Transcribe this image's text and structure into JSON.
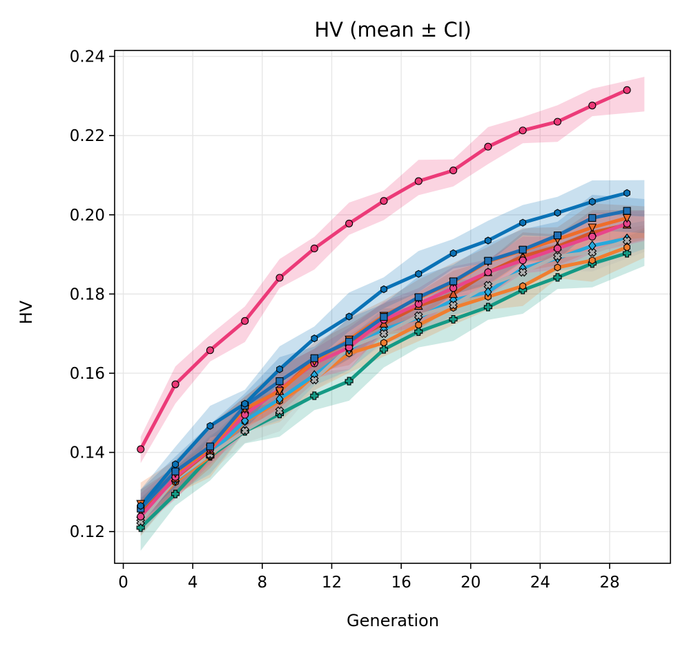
{
  "chart_data": {
    "type": "line",
    "title": "HV (mean ± CI)",
    "xlabel": "Generation",
    "ylabel": "HV",
    "xlim": [
      -0.5,
      31.5
    ],
    "ylim": [
      0.112,
      0.2415
    ],
    "xticks": [
      0,
      4,
      8,
      12,
      16,
      20,
      24,
      28
    ],
    "xtick_labels": [
      "0",
      "4",
      "8",
      "12",
      "16",
      "20",
      "24",
      "28"
    ],
    "yticks": [
      0.12,
      0.14,
      0.16,
      0.18,
      0.2,
      0.22,
      0.24
    ],
    "ytick_labels": [
      "0.12",
      "0.14",
      "0.16",
      "0.18",
      "0.20",
      "0.22",
      "0.24"
    ],
    "grid": true,
    "legend": "none",
    "x": [
      1,
      3,
      5,
      7,
      9,
      11,
      13,
      15,
      17,
      19,
      21,
      23,
      25,
      27,
      29
    ],
    "band_x": [
      1,
      3,
      5,
      7,
      9,
      11,
      13,
      15,
      17,
      19,
      21,
      23,
      25,
      27,
      30
    ],
    "series": [
      {
        "name": "series-1-green-plus",
        "color": "#159a85",
        "marker": "plus",
        "values": [
          0.121,
          0.1295,
          0.139,
          0.1453,
          0.1497,
          0.1543,
          0.158,
          0.166,
          0.1705,
          0.1736,
          0.1767,
          0.181,
          0.1842,
          0.1877,
          0.1903
        ],
        "ci": 0.0045
      },
      {
        "name": "series-2-orange-hexagon",
        "color": "#f07e30",
        "marker": "hexagon",
        "values": [
          0.1237,
          0.1325,
          0.139,
          0.1478,
          0.153,
          0.1585,
          0.165,
          0.1677,
          0.1722,
          0.1765,
          0.1793,
          0.182,
          0.1867,
          0.1885,
          0.1918
        ],
        "ci": 0.004
      },
      {
        "name": "series-3-sky-diamond",
        "color": "#27a9dc",
        "marker": "diamond",
        "values": [
          0.1235,
          0.133,
          0.1395,
          0.148,
          0.1535,
          0.1595,
          0.166,
          0.171,
          0.174,
          0.1785,
          0.1805,
          0.1865,
          0.189,
          0.1922,
          0.194
        ],
        "ci": 0.004
      },
      {
        "name": "series-4-gray-x",
        "color": "#b0b0b0",
        "marker": "x",
        "values": [
          0.1225,
          0.1332,
          0.1395,
          0.1455,
          0.1505,
          0.1583,
          0.1665,
          0.17,
          0.1745,
          0.1772,
          0.1822,
          0.1855,
          0.1895,
          0.1905,
          0.1935
        ],
        "ci": 0.004
      },
      {
        "name": "series-5-red-triangle-up",
        "color": "#d6552b",
        "marker": "triangle-up",
        "values": [
          0.1245,
          0.1335,
          0.1405,
          0.1508,
          0.1555,
          0.1635,
          0.168,
          0.1725,
          0.177,
          0.18,
          0.1855,
          0.1895,
          0.192,
          0.1955,
          0.1975
        ],
        "ci": 0.0045
      },
      {
        "name": "series-6-magenta-circle",
        "color": "#e8458b",
        "marker": "circle",
        "values": [
          0.1238,
          0.1338,
          0.1408,
          0.1495,
          0.156,
          0.1625,
          0.1665,
          0.1735,
          0.1775,
          0.1815,
          0.1855,
          0.1885,
          0.1915,
          0.1945,
          0.1978
        ],
        "ci": 0.0045
      },
      {
        "name": "series-7-orange-triangle-down",
        "color": "#ee6d2a",
        "marker": "triangle-down",
        "values": [
          0.127,
          0.1348,
          0.141,
          0.151,
          0.1555,
          0.163,
          0.1685,
          0.1745,
          0.179,
          0.183,
          0.1882,
          0.191,
          0.1938,
          0.1968,
          0.1992
        ],
        "ci": 0.0045
      },
      {
        "name": "series-8-blue-square",
        "color": "#1f6fb4",
        "marker": "square",
        "values": [
          0.1258,
          0.1352,
          0.1415,
          0.1518,
          0.158,
          0.1638,
          0.168,
          0.1742,
          0.1792,
          0.1832,
          0.1884,
          0.1912,
          0.1948,
          0.1992,
          0.201
        ],
        "ci": 0.0045
      },
      {
        "name": "series-9-blue-hexagon",
        "color": "#0a72b6",
        "marker": "hexagon",
        "values": [
          0.1265,
          0.137,
          0.1467,
          0.1523,
          0.161,
          0.1688,
          0.1743,
          0.1812,
          0.1851,
          0.1903,
          0.1935,
          0.198,
          0.2005,
          0.2033,
          0.2055
        ],
        "ci": 0.0045
      },
      {
        "name": "series-10-pink-circle",
        "color": "#ec3a78",
        "marker": "circle",
        "values": [
          0.1408,
          0.1572,
          0.1658,
          0.1732,
          0.1841,
          0.1915,
          0.1978,
          0.2035,
          0.2085,
          0.2112,
          0.2172,
          0.2213,
          0.2235,
          0.2276,
          0.2315
        ],
        "ci": 0.004
      }
    ]
  }
}
